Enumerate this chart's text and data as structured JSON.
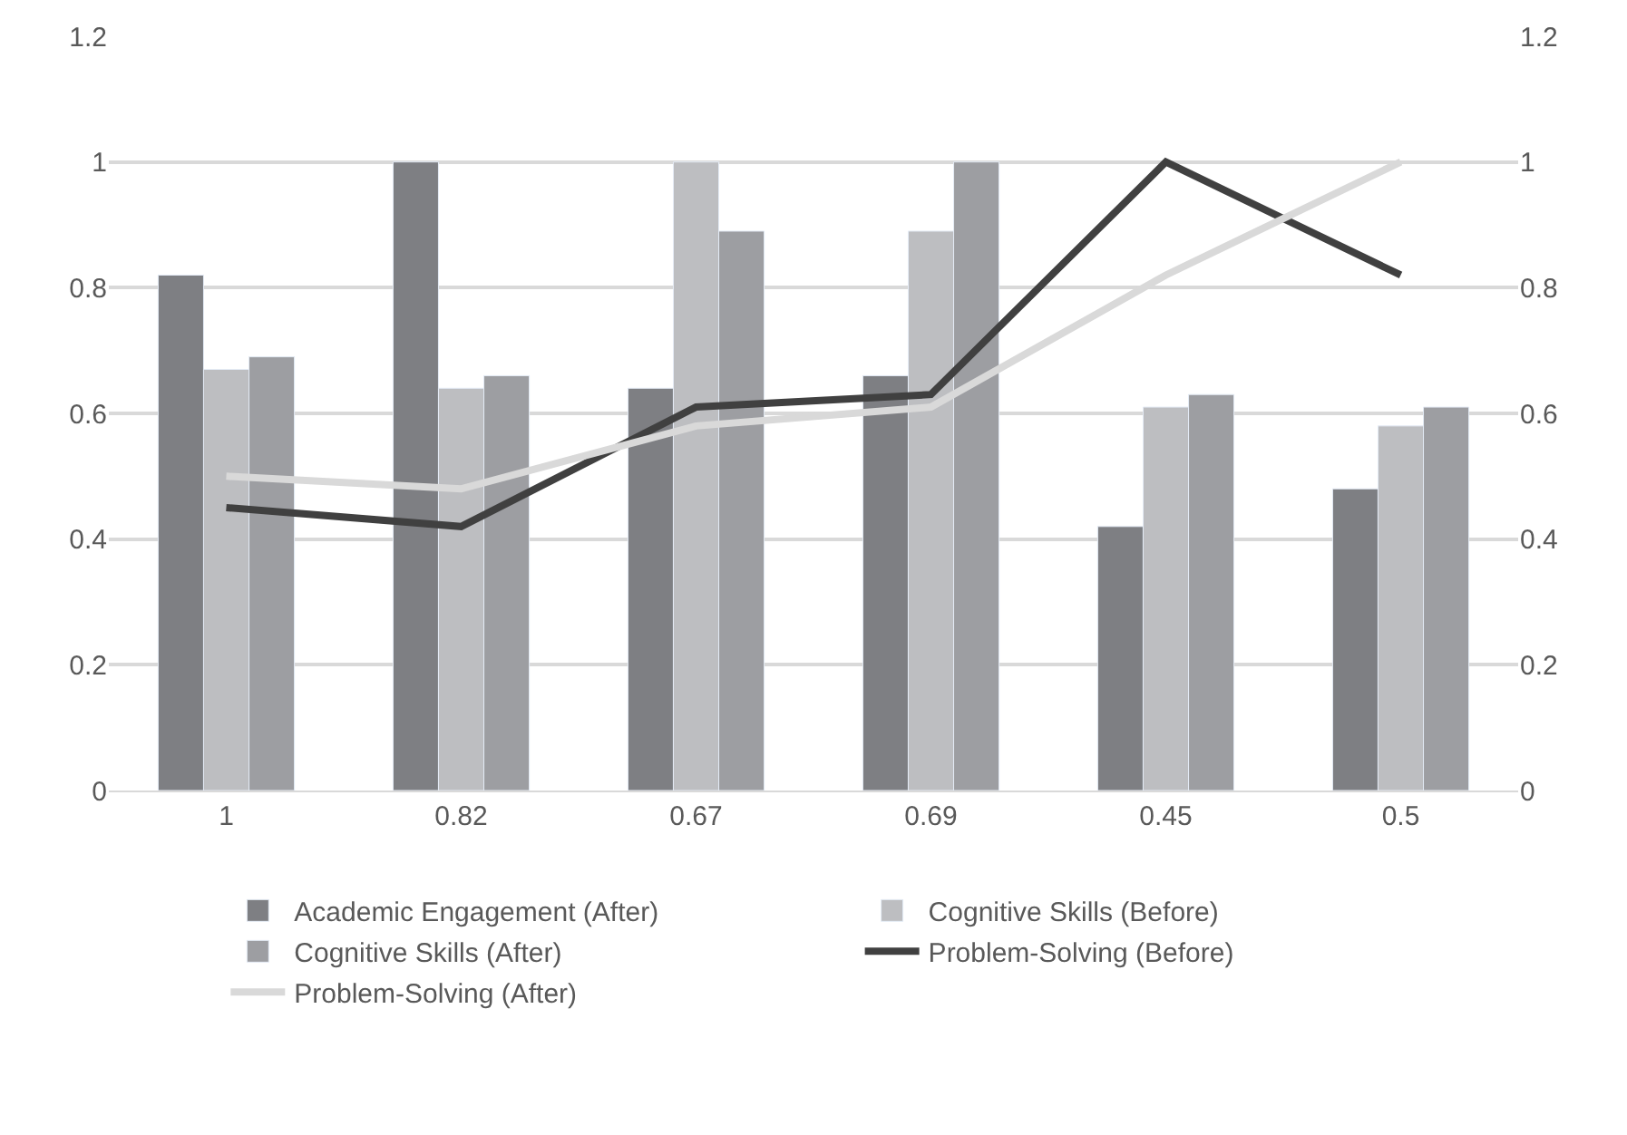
{
  "chart_data": {
    "type": "bar",
    "categories": [
      "1",
      "0.82",
      "0.67",
      "0.69",
      "0.45",
      "0.5"
    ],
    "series": [
      {
        "name": "Academic Engagement (After)",
        "color": "#7e7f83",
        "values": [
          0.82,
          1,
          0.64,
          0.66,
          0.42,
          0.48
        ]
      },
      {
        "name": "Cognitive Skills (Before)",
        "color": "#bdbec1",
        "values": [
          0.67,
          0.64,
          1,
          0.89,
          0.61,
          0.58
        ]
      },
      {
        "name": "Cognitive Skills (After)",
        "color": "#9d9ea2",
        "values": [
          0.69,
          0.66,
          0.89,
          1,
          0.63,
          0.61
        ]
      },
      {
        "name": "Problem-Solving (Before)",
        "color": "#404040",
        "type": "line",
        "axis": "y2",
        "values": [
          0.45,
          0.42,
          0.61,
          0.63,
          1,
          0.82
        ]
      },
      {
        "name": "Problem-Solving (After)",
        "color": "#d9d9d9",
        "type": "line",
        "axis": "y2",
        "values": [
          0.5,
          0.48,
          0.58,
          0.61,
          0.82,
          1
        ]
      }
    ],
    "ylim": [
      0,
      1.2
    ],
    "yticks": [
      0,
      0.2,
      0.4,
      0.6,
      0.8,
      1,
      1.2
    ],
    "y2lim": [
      0,
      1.2
    ],
    "y2ticks": [
      0,
      0.2,
      0.4,
      0.6,
      0.8,
      1,
      1.2
    ],
    "grid": "y",
    "legend": "bottom",
    "marker": "none",
    "line_style": "solid"
  }
}
